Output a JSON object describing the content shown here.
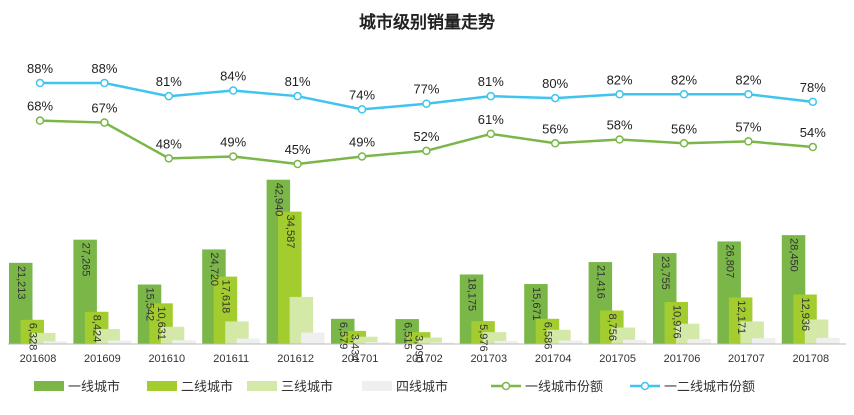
{
  "chart_data": {
    "type": "bar",
    "title": "城市级别销量走势",
    "categories": [
      "201608",
      "201609",
      "201610",
      "201611",
      "201612",
      "201701",
      "201702",
      "201703",
      "201704",
      "201705",
      "201706",
      "201707",
      "201708"
    ],
    "series": [
      {
        "name": "一线城市",
        "kind": "bar",
        "color": "#7ab648",
        "values": [
          21213,
          27265,
          15542,
          24720,
          42940,
          6579,
          6515,
          18175,
          15671,
          21416,
          23755,
          26807,
          28450
        ]
      },
      {
        "name": "二线城市",
        "kind": "bar",
        "color": "#a3cc2e",
        "values": [
          6328,
          8424,
          10631,
          17618,
          34587,
          3434,
          3090,
          5976,
          6586,
          8756,
          10976,
          12171,
          12936
        ]
      },
      {
        "name": "三线城市",
        "kind": "bar",
        "color": "#d4e8a8",
        "values": [
          2900,
          3900,
          4500,
          5900,
          12300,
          1900,
          1700,
          3100,
          3700,
          4300,
          5300,
          5900,
          6400
        ]
      },
      {
        "name": "四线城市",
        "kind": "bar",
        "color": "#efefef",
        "values": [
          700,
          900,
          1000,
          1400,
          3000,
          500,
          400,
          800,
          900,
          1100,
          1300,
          1500,
          1600
        ]
      },
      {
        "name": "一线城市份额",
        "kind": "line",
        "color": "#7ab648",
        "values": [
          68,
          67,
          48,
          49,
          45,
          49,
          52,
          61,
          56,
          58,
          56,
          57,
          54
        ],
        "labels": [
          "68%",
          "67%",
          "48%",
          "49%",
          "45%",
          "49%",
          "52%",
          "61%",
          "56%",
          "58%",
          "56%",
          "57%",
          "54%"
        ]
      },
      {
        "name": "一二线城市份额",
        "kind": "line",
        "color": "#3fc4ef",
        "values": [
          88,
          88,
          81,
          84,
          81,
          74,
          77,
          81,
          80,
          82,
          82,
          82,
          78
        ],
        "labels": [
          "88%",
          "88%",
          "81%",
          "84%",
          "81%",
          "74%",
          "77%",
          "81%",
          "80%",
          "82%",
          "82%",
          "82%",
          "78%"
        ]
      }
    ],
    "bar_labels": {
      "一线城市": [
        "21,213",
        "27,265",
        "15,542",
        "24,720",
        "42,940",
        "6,579",
        "6,515",
        "18,175",
        "15,671",
        "21,416",
        "23,755",
        "26,807",
        "28,450"
      ],
      "二线城市": [
        "6,328",
        "8,424",
        "10,631",
        "17,618",
        "34,587",
        "3,434",
        "3,090",
        "5,976",
        "6,586",
        "8,756",
        "10,976",
        "12,171",
        "12,936"
      ]
    },
    "ylim": [
      0,
      46000
    ],
    "share_ylim": [
      40,
      90
    ],
    "grid": false,
    "legend_position": "bottom"
  }
}
